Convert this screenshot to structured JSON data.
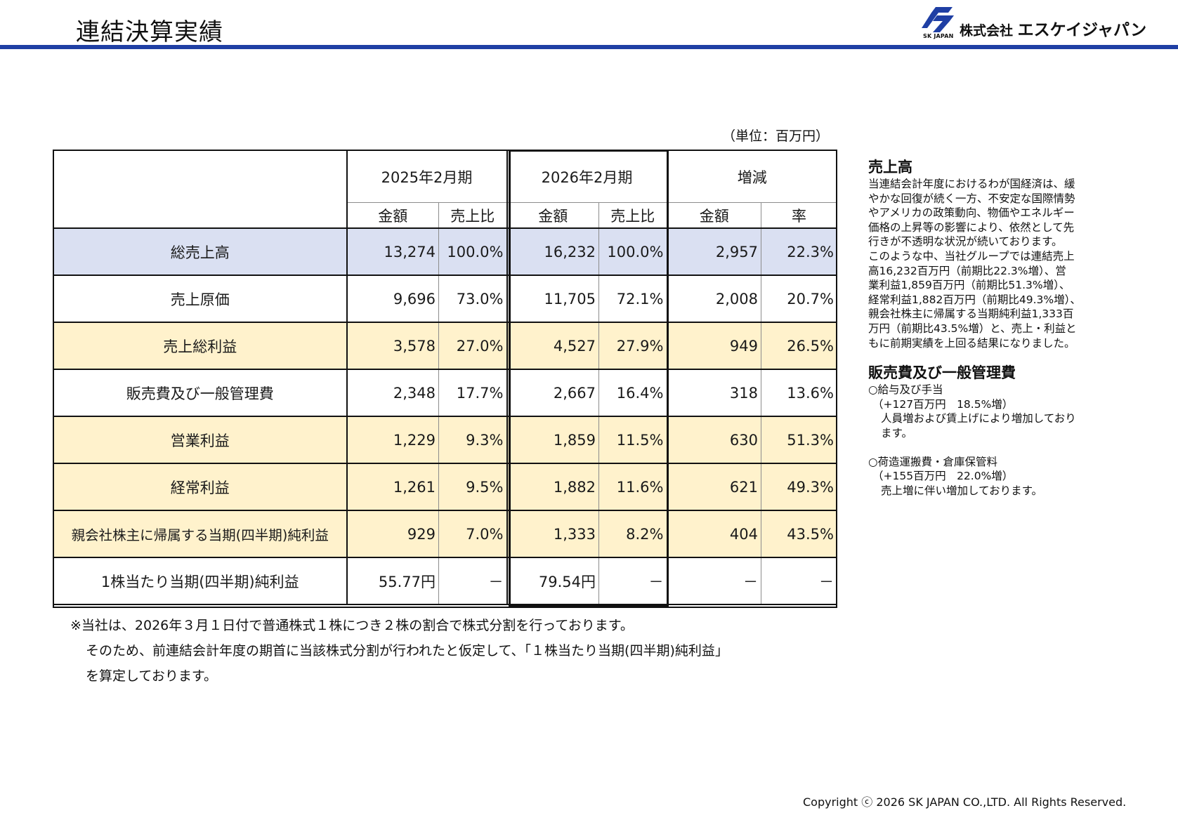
{
  "page": {
    "title": "連結決算実績",
    "unit_label": "（単位：百万円）",
    "copyright": "Copyright ⓒ 2026 SK JAPAN CO.,LTD. All Rights Reserved."
  },
  "logo": {
    "icon": "sk-japan-logo-mark",
    "sub_text": "SK JAPAN",
    "company_prefix": "株式会社",
    "company_name": "エスケイジャパン",
    "brand_color": "#1f3fa4"
  },
  "colors": {
    "title_rule": "#1f3fa4",
    "row_blue": "#dae0f2",
    "row_cream": "#fff2cc"
  },
  "table": {
    "periods": [
      "2025年2月期",
      "2026年2月期",
      "増減"
    ],
    "subheaders": [
      "金額",
      "売上比",
      "金額",
      "売上比",
      "金額",
      "率"
    ],
    "rows": [
      {
        "label": "総売上高",
        "c1": "13,274",
        "c2": "100.0%",
        "c3": "16,232",
        "c4": "100.0%",
        "c5": "2,957",
        "c6": "22.3%"
      },
      {
        "label": "売上原価",
        "c1": "9,696",
        "c2": "73.0%",
        "c3": "11,705",
        "c4": "72.1%",
        "c5": "2,008",
        "c6": "20.7%"
      },
      {
        "label": "売上総利益",
        "c1": "3,578",
        "c2": "27.0%",
        "c3": "4,527",
        "c4": "27.9%",
        "c5": "949",
        "c6": "26.5%"
      },
      {
        "label": "販売費及び一般管理費",
        "c1": "2,348",
        "c2": "17.7%",
        "c3": "2,667",
        "c4": "16.4%",
        "c5": "318",
        "c6": "13.6%"
      },
      {
        "label": "営業利益",
        "c1": "1,229",
        "c2": "9.3%",
        "c3": "1,859",
        "c4": "11.5%",
        "c5": "630",
        "c6": "51.3%"
      },
      {
        "label": "経常利益",
        "c1": "1,261",
        "c2": "9.5%",
        "c3": "1,882",
        "c4": "11.6%",
        "c5": "621",
        "c6": "49.3%"
      },
      {
        "label": "親会社株主に帰属する当期(四半期)純利益",
        "c1": "929",
        "c2": "7.0%",
        "c3": "1,333",
        "c4": "8.2%",
        "c5": "404",
        "c6": "43.5%"
      },
      {
        "label": "1株当たり当期(四半期)純利益",
        "c1": "55.77円",
        "c2": "－",
        "c3": "79.54円",
        "c4": "－",
        "c5": "－",
        "c6": "－"
      }
    ]
  },
  "notes": [
    "※当社は、2026年３月１日付で普通株式１株につき２株の割合で株式分割を行っております。",
    "そのため、前連結会計年度の期首に当該株式分割が行われたと仮定して、「１株当たり当期(四半期)純利益」",
    "を算定しております。"
  ],
  "side": {
    "sales_heading": "売上高",
    "sales_lines": [
      "当連結会計年度におけるわが国経済は、緩",
      "やかな回復が続く一方、不安定な国際情勢",
      "やアメリカの政策動向、物価やエネルギー",
      "価格の上昇等の影響により、依然として先",
      "行きが不透明な状況が続いております。",
      "このような中、当社グループでは連結売上",
      "高16,232百万円（前期比22.3%増）、営",
      "業利益1,859百万円（前期比51.3%増）、",
      "経常利益1,882百万円（前期比49.3%増）、",
      "親会社株主に帰属する当期純利益1,333百",
      "万円（前期比43.5%増）と、売上・利益と",
      "もに前期実績を上回る結果になりました。"
    ],
    "sga_heading": "販売費及び一般管理費",
    "item1_title": "○給与及び手当",
    "item1_amount": "（+127百万円　18.5%増）",
    "item1_desc1": "人員増および賃上げにより増加しており",
    "item1_desc2": "ます。",
    "item2_title": "○荷造運搬費・倉庫保管料",
    "item2_amount": "（+155百万円　22.0%増）",
    "item2_desc1": "売上増に伴い増加しております。"
  }
}
